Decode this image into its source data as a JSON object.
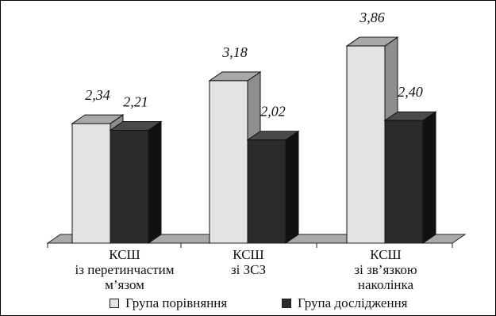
{
  "chart_data": {
    "type": "bar",
    "style": "3d-clustered",
    "categories": [
      [
        "КСШ",
        "із перетинчастим",
        "м’язом"
      ],
      [
        "КСШ",
        "зі ЗСЗ"
      ],
      [
        "КСШ",
        "зі зв’язкою",
        "наколінка"
      ]
    ],
    "series": [
      {
        "name": "Група порівняння",
        "values": [
          2.34,
          3.18,
          3.86
        ],
        "labels": [
          "2,34",
          "3,18",
          "3,86"
        ],
        "color": "#e3e3e3"
      },
      {
        "name": "Група дослідження",
        "values": [
          2.21,
          2.02,
          2.4
        ],
        "labels": [
          "2,21",
          "2,02",
          "2,40"
        ],
        "color": "#2b2b2b"
      }
    ],
    "ylim": [
      0,
      4
    ],
    "grid": false,
    "legend_position": "bottom",
    "title": "",
    "xlabel": "",
    "ylabel": ""
  }
}
